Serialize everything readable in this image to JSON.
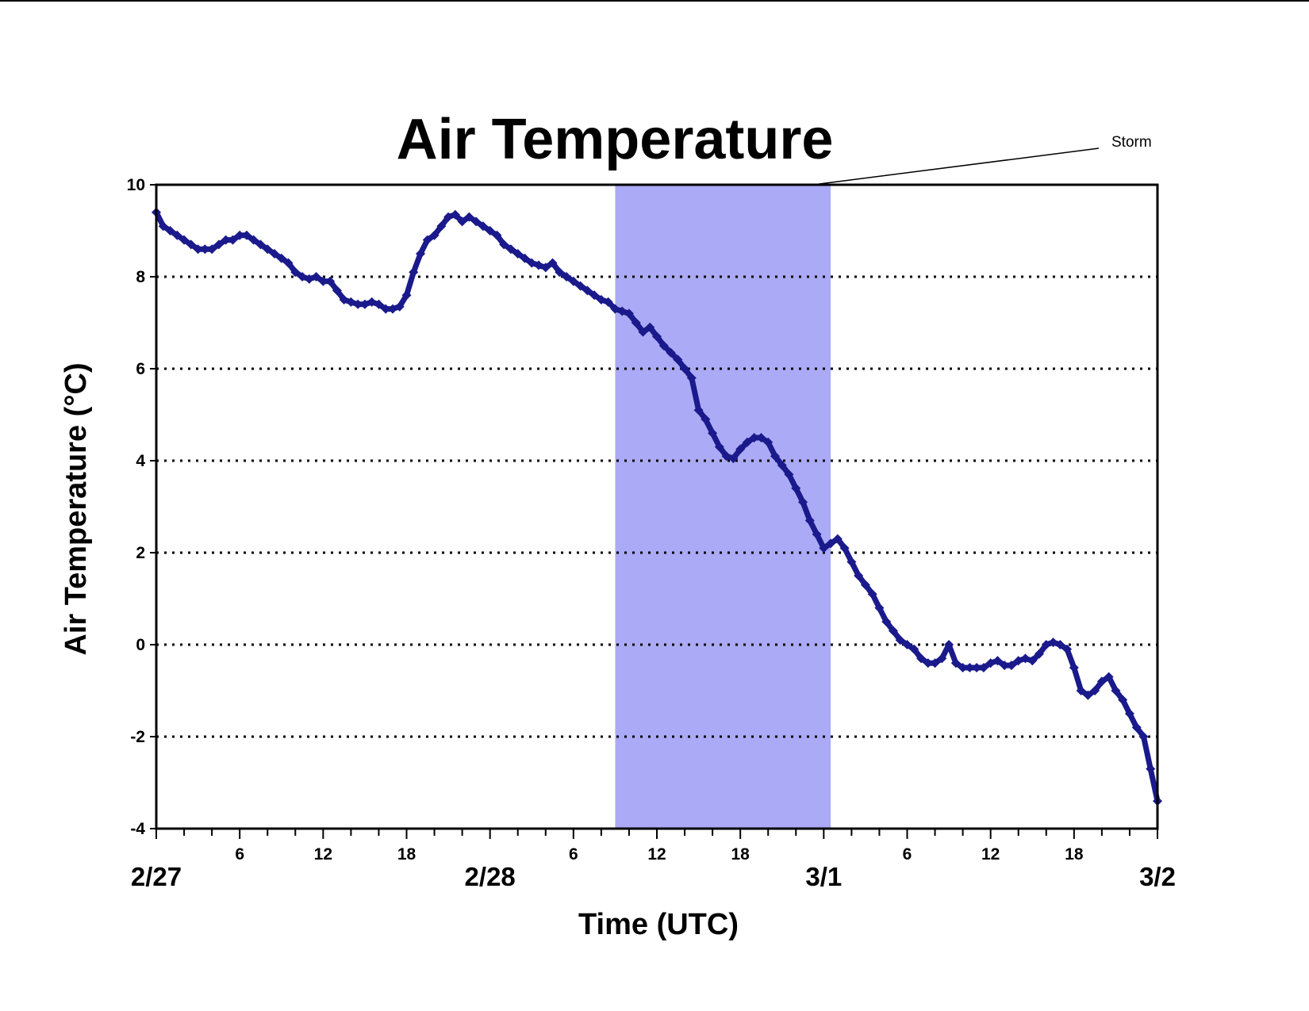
{
  "chart_data": {
    "type": "line",
    "title": "Air Temperature",
    "xlabel": "Time (UTC)",
    "ylabel": "Air Temperature (°C)",
    "ylim": [
      -4,
      10
    ],
    "yticks": [
      -4,
      -2,
      0,
      2,
      4,
      6,
      8,
      10
    ],
    "xlim": [
      "2/27 00:00",
      "3/2 00:00"
    ],
    "date_labels": [
      "2/27",
      "2/28",
      "3/1",
      "3/2"
    ],
    "hour_labels": [
      "6",
      "12",
      "18"
    ],
    "grid": "horizontal dotted at each y tick",
    "colors": {
      "series": "#1a1a8c",
      "storm_band": "#aaaaf6",
      "grid": "#000000"
    },
    "shaded_regions": [
      {
        "label": "Storm",
        "start": "2/28 09:00",
        "end": "3/1 00:30"
      }
    ],
    "series": [
      {
        "marker": "diamond",
        "points": [
          [
            "2/27 00:00",
            9.4
          ],
          [
            "2/27 00:30",
            9.1
          ],
          [
            "2/27 01:00",
            9.0
          ],
          [
            "2/27 01:30",
            8.9
          ],
          [
            "2/27 02:00",
            8.8
          ],
          [
            "2/27 02:30",
            8.7
          ],
          [
            "2/27 03:00",
            8.6
          ],
          [
            "2/27 03:30",
            8.6
          ],
          [
            "2/27 04:00",
            8.6
          ],
          [
            "2/27 04:30",
            8.7
          ],
          [
            "2/27 05:00",
            8.8
          ],
          [
            "2/27 05:30",
            8.8
          ],
          [
            "2/27 06:00",
            8.9
          ],
          [
            "2/27 06:30",
            8.9
          ],
          [
            "2/27 07:00",
            8.8
          ],
          [
            "2/27 07:30",
            8.7
          ],
          [
            "2/27 08:00",
            8.6
          ],
          [
            "2/27 08:30",
            8.5
          ],
          [
            "2/27 09:00",
            8.4
          ],
          [
            "2/27 09:30",
            8.3
          ],
          [
            "2/27 10:00",
            8.1
          ],
          [
            "2/27 10:30",
            8.0
          ],
          [
            "2/27 11:00",
            7.95
          ],
          [
            "2/27 11:30",
            8.0
          ],
          [
            "2/27 12:00",
            7.9
          ],
          [
            "2/27 12:30",
            7.9
          ],
          [
            "2/27 13:00",
            7.7
          ],
          [
            "2/27 13:30",
            7.5
          ],
          [
            "2/27 14:00",
            7.45
          ],
          [
            "2/27 14:30",
            7.4
          ],
          [
            "2/27 15:00",
            7.4
          ],
          [
            "2/27 15:30",
            7.45
          ],
          [
            "2/27 16:00",
            7.4
          ],
          [
            "2/27 16:30",
            7.3
          ],
          [
            "2/27 17:00",
            7.3
          ],
          [
            "2/27 17:30",
            7.35
          ],
          [
            "2/27 18:00",
            7.6
          ],
          [
            "2/27 18:30",
            8.1
          ],
          [
            "2/27 19:00",
            8.5
          ],
          [
            "2/27 19:30",
            8.8
          ],
          [
            "2/27 20:00",
            8.9
          ],
          [
            "2/27 20:30",
            9.1
          ],
          [
            "2/27 21:00",
            9.3
          ],
          [
            "2/27 21:30",
            9.35
          ],
          [
            "2/27 22:00",
            9.2
          ],
          [
            "2/27 22:30",
            9.3
          ],
          [
            "2/27 23:00",
            9.2
          ],
          [
            "2/27 23:30",
            9.1
          ],
          [
            "2/28 00:00",
            9.0
          ],
          [
            "2/28 00:30",
            8.9
          ],
          [
            "2/28 01:00",
            8.7
          ],
          [
            "2/28 01:30",
            8.6
          ],
          [
            "2/28 02:00",
            8.5
          ],
          [
            "2/28 02:30",
            8.4
          ],
          [
            "2/28 03:00",
            8.3
          ],
          [
            "2/28 03:30",
            8.25
          ],
          [
            "2/28 04:00",
            8.2
          ],
          [
            "2/28 04:30",
            8.3
          ],
          [
            "2/28 05:00",
            8.1
          ],
          [
            "2/28 05:30",
            8.0
          ],
          [
            "2/28 06:00",
            7.9
          ],
          [
            "2/28 06:30",
            7.8
          ],
          [
            "2/28 07:00",
            7.7
          ],
          [
            "2/28 07:30",
            7.6
          ],
          [
            "2/28 08:00",
            7.5
          ],
          [
            "2/28 08:30",
            7.45
          ],
          [
            "2/28 09:00",
            7.3
          ],
          [
            "2/28 09:30",
            7.25
          ],
          [
            "2/28 10:00",
            7.2
          ],
          [
            "2/28 10:30",
            7.0
          ],
          [
            "2/28 11:00",
            6.8
          ],
          [
            "2/28 11:30",
            6.9
          ],
          [
            "2/28 12:00",
            6.7
          ],
          [
            "2/28 12:30",
            6.5
          ],
          [
            "2/28 13:00",
            6.35
          ],
          [
            "2/28 13:30",
            6.2
          ],
          [
            "2/28 14:00",
            6.0
          ],
          [
            "2/28 14:30",
            5.8
          ],
          [
            "2/28 15:00",
            5.1
          ],
          [
            "2/28 15:30",
            4.9
          ],
          [
            "2/28 16:00",
            4.6
          ],
          [
            "2/28 16:30",
            4.3
          ],
          [
            "2/28 17:00",
            4.1
          ],
          [
            "2/28 17:30",
            4.05
          ],
          [
            "2/28 18:00",
            4.25
          ],
          [
            "2/28 18:30",
            4.4
          ],
          [
            "2/28 19:00",
            4.5
          ],
          [
            "2/28 19:30",
            4.5
          ],
          [
            "2/28 20:00",
            4.4
          ],
          [
            "2/28 20:30",
            4.1
          ],
          [
            "2/28 21:00",
            3.9
          ],
          [
            "2/28 21:30",
            3.7
          ],
          [
            "2/28 22:00",
            3.4
          ],
          [
            "2/28 22:30",
            3.1
          ],
          [
            "2/28 23:00",
            2.7
          ],
          [
            "2/28 23:30",
            2.4
          ],
          [
            "3/1 00:00",
            2.1
          ],
          [
            "3/1 00:30",
            2.2
          ],
          [
            "3/1 01:00",
            2.3
          ],
          [
            "3/1 01:30",
            2.1
          ],
          [
            "3/1 02:00",
            1.8
          ],
          [
            "3/1 02:30",
            1.5
          ],
          [
            "3/1 03:00",
            1.3
          ],
          [
            "3/1 03:30",
            1.1
          ],
          [
            "3/1 04:00",
            0.8
          ],
          [
            "3/1 04:30",
            0.5
          ],
          [
            "3/1 05:00",
            0.3
          ],
          [
            "3/1 05:30",
            0.1
          ],
          [
            "3/1 06:00",
            0.0
          ],
          [
            "3/1 06:30",
            -0.1
          ],
          [
            "3/1 07:00",
            -0.3
          ],
          [
            "3/1 07:30",
            -0.4
          ],
          [
            "3/1 08:00",
            -0.4
          ],
          [
            "3/1 08:30",
            -0.3
          ],
          [
            "3/1 09:00",
            0.0
          ],
          [
            "3/1 09:30",
            -0.4
          ],
          [
            "3/1 10:00",
            -0.5
          ],
          [
            "3/1 10:30",
            -0.5
          ],
          [
            "3/1 11:00",
            -0.5
          ],
          [
            "3/1 11:30",
            -0.5
          ],
          [
            "3/1 12:00",
            -0.4
          ],
          [
            "3/1 12:30",
            -0.35
          ],
          [
            "3/1 13:00",
            -0.45
          ],
          [
            "3/1 13:30",
            -0.45
          ],
          [
            "3/1 14:00",
            -0.35
          ],
          [
            "3/1 14:30",
            -0.3
          ],
          [
            "3/1 15:00",
            -0.35
          ],
          [
            "3/1 15:30",
            -0.2
          ],
          [
            "3/1 16:00",
            0.0
          ],
          [
            "3/1 16:30",
            0.05
          ],
          [
            "3/1 17:00",
            0.0
          ],
          [
            "3/1 17:30",
            -0.1
          ],
          [
            "3/1 18:00",
            -0.5
          ],
          [
            "3/1 18:30",
            -1.0
          ],
          [
            "3/1 19:00",
            -1.1
          ],
          [
            "3/1 19:30",
            -1.0
          ],
          [
            "3/1 20:00",
            -0.8
          ],
          [
            "3/1 20:30",
            -0.7
          ],
          [
            "3/1 21:00",
            -1.0
          ],
          [
            "3/1 21:30",
            -1.2
          ],
          [
            "3/1 22:00",
            -1.5
          ],
          [
            "3/1 22:30",
            -1.8
          ],
          [
            "3/1 23:00",
            -2.0
          ],
          [
            "3/1 23:30",
            -2.7
          ],
          [
            "3/2 00:00",
            -3.4
          ]
        ]
      }
    ]
  }
}
